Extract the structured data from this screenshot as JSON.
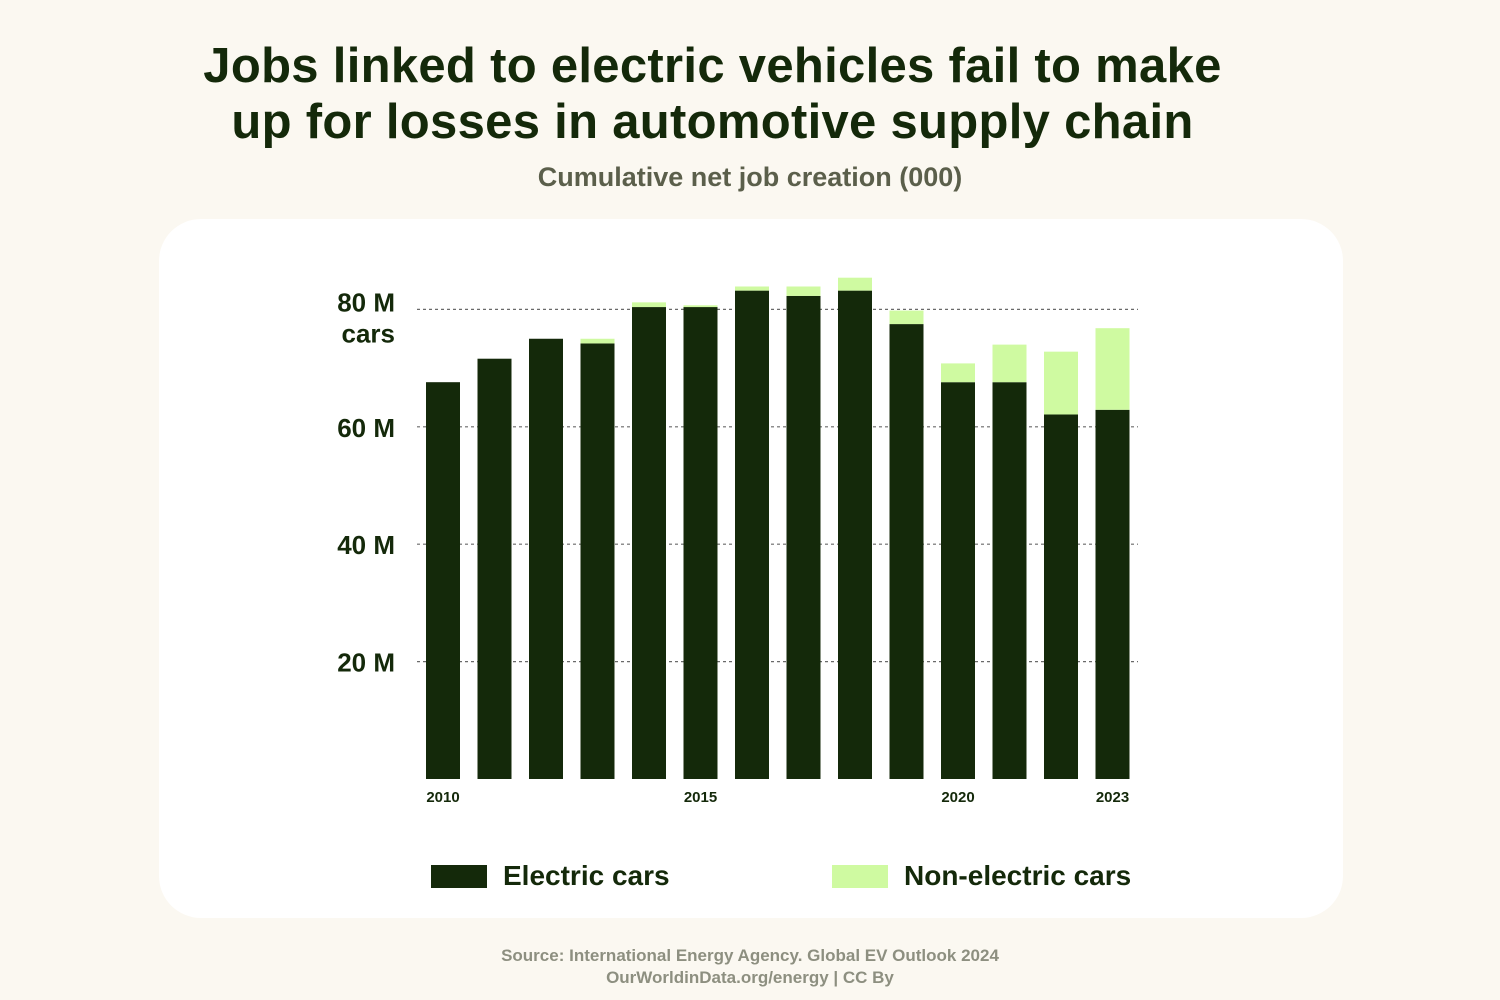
{
  "title_lines": [
    "Jobs linked to electric vehicles fail to make",
    "up for losses in automotive supply chain"
  ],
  "subtitle": "Cumulative net job creation (000)",
  "colors": {
    "electric": "#14290a",
    "non_electric": "#cffaa1",
    "gridline": "#6a6a6a",
    "background": "#fbf8f1",
    "card": "#ffffff"
  },
  "chart_data": {
    "type": "bar",
    "stacked": true,
    "x": [
      2010,
      2011,
      2012,
      2013,
      2014,
      2015,
      2016,
      2017,
      2018,
      2019,
      2020,
      2021,
      2022,
      2023
    ],
    "x_tick_labels": [
      {
        "x": 2010,
        "label": "2010"
      },
      {
        "x": 2015,
        "label": "2015"
      },
      {
        "x": 2020,
        "label": "2020"
      },
      {
        "x": 2023,
        "label": "2023"
      }
    ],
    "y_tick_labels": [
      {
        "y": 20,
        "label": "20 M"
      },
      {
        "y": 40,
        "label": "40 M"
      },
      {
        "y": 60,
        "label": "60 M"
      },
      {
        "y": 80,
        "label": "80 M",
        "unit": "cars"
      }
    ],
    "ylim": [
      0,
      87
    ],
    "grid": true,
    "legend_position": "bottom",
    "series": [
      {
        "name": "Electric cars",
        "color": "#14290a",
        "values": [
          67.6,
          71.6,
          75.0,
          74.2,
          80.4,
          80.4,
          83.2,
          82.3,
          83.2,
          77.5,
          67.6,
          67.6,
          62.1,
          62.9
        ]
      },
      {
        "name": "Non-electric cars",
        "color": "#cffaa1",
        "values": [
          0,
          0,
          0,
          0.8,
          0.8,
          0.3,
          0.7,
          1.6,
          2.2,
          2.3,
          3.2,
          6.4,
          10.7,
          13.9
        ]
      }
    ]
  },
  "legend": {
    "electric_label": "Electric cars",
    "non_electric_label": "Non-electric cars"
  },
  "source_lines": [
    "Source: International Energy Agency. Global EV Outlook 2024",
    "OurWorldinData.org/energy | CC By"
  ]
}
